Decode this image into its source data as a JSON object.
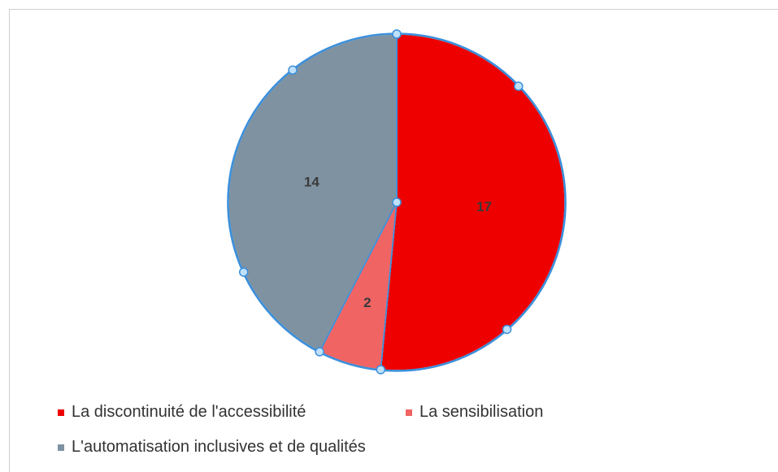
{
  "chart_data": {
    "type": "pie",
    "slices": [
      {
        "name": "La discontinuité de l'accessibilité",
        "value": 17,
        "color": "#ee0000"
      },
      {
        "name": "La sensibilisation",
        "value": 2,
        "color": "#f06464"
      },
      {
        "name": "L'automatisation inclusives et de qualités",
        "value": 14,
        "color": "#7f92a1"
      }
    ],
    "data_labels": [
      "17",
      "2",
      "14"
    ],
    "legend_position": "bottom",
    "selection_color": "#3b8fdb"
  }
}
